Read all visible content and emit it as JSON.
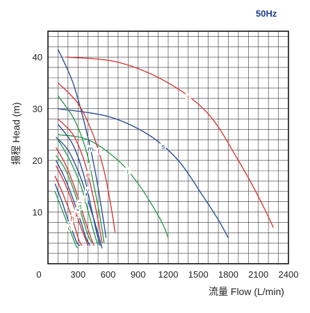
{
  "chart_data": {
    "type": "line",
    "title": "",
    "frequency_label": "50Hz",
    "xlabel": "流量 Flow (L/min)",
    "ylabel": "揚程 Head (m)",
    "xlim": [
      0,
      2400
    ],
    "ylim": [
      0,
      45
    ],
    "x_ticks": [
      0,
      300,
      600,
      900,
      1200,
      1500,
      1800,
      2100,
      2400
    ],
    "y_ticks": [
      10,
      20,
      30,
      40
    ],
    "grid": true,
    "legend": "inline curve letters",
    "colors": {
      "red": "#d43a3a",
      "green": "#2e9b4e",
      "blue": "#2a4f9a",
      "frame": "#111111",
      "title": "#1f3d8f"
    },
    "series": [
      {
        "name": "t",
        "color": "red",
        "x": [
          180,
          700,
          1200,
          1600,
          1900,
          2100,
          2250
        ],
        "y": [
          40,
          39,
          35,
          29,
          20,
          13,
          7
        ]
      },
      {
        "name": "s",
        "color": "blue",
        "x": [
          100,
          600,
          1000,
          1300,
          1550,
          1700,
          1800
        ],
        "y": [
          30,
          28.5,
          25,
          20,
          13,
          8.5,
          5
        ]
      },
      {
        "name": "r",
        "color": "green",
        "x": [
          100,
          400,
          700,
          900,
          1050,
          1150,
          1200
        ],
        "y": [
          25,
          24,
          20,
          15.5,
          11,
          7.5,
          5
        ]
      },
      {
        "name": "m",
        "color": "blue",
        "x": [
          100,
          250,
          380,
          470,
          540,
          580
        ],
        "y": [
          41.5,
          35,
          26,
          18,
          10,
          5
        ]
      },
      {
        "name": "f",
        "color": "red",
        "x": [
          100,
          300,
          450,
          560,
          630,
          670
        ],
        "y": [
          35,
          31,
          25,
          18,
          11,
          6
        ]
      },
      {
        "name": "l",
        "color": "green",
        "x": [
          100,
          260,
          380,
          460,
          520,
          560
        ],
        "y": [
          32.5,
          28,
          22,
          15,
          9,
          4
        ]
      },
      {
        "name": "e",
        "color": "red",
        "x": [
          100,
          250,
          360,
          440,
          500,
          540
        ],
        "y": [
          28,
          25,
          20,
          14,
          8.5,
          4
        ]
      },
      {
        "name": "y",
        "color": "blue",
        "x": [
          100,
          250,
          360,
          430,
          480,
          520
        ],
        "y": [
          27,
          23,
          17,
          11,
          6.5,
          3.5
        ]
      },
      {
        "name": "j",
        "color": "green",
        "x": [
          100,
          220,
          330,
          410,
          460,
          500
        ],
        "y": [
          24,
          20,
          15,
          9.5,
          6,
          3.5
        ]
      },
      {
        "name": "n",
        "color": "red",
        "x": [
          80,
          180,
          280,
          360,
          420,
          460
        ],
        "y": [
          22.5,
          19,
          14,
          9,
          5.5,
          3.5
        ]
      },
      {
        "name": "d",
        "color": "green",
        "x": [
          80,
          180,
          280,
          350,
          400,
          440
        ],
        "y": [
          21,
          18,
          13,
          8.5,
          5.5,
          4
        ]
      },
      {
        "name": "z",
        "color": "blue",
        "x": [
          80,
          170,
          260,
          330,
          380,
          420
        ],
        "y": [
          20,
          16.5,
          12,
          8,
          5,
          3.5
        ]
      },
      {
        "name": "k",
        "color": "red",
        "x": [
          80,
          170,
          260,
          320,
          370,
          400
        ],
        "y": [
          19,
          15.5,
          11,
          7.5,
          5,
          3.5
        ]
      },
      {
        "name": "h",
        "color": "red",
        "x": [
          70,
          150,
          220,
          270,
          310,
          340
        ],
        "y": [
          17,
          13.5,
          10,
          7,
          4.5,
          3.5
        ]
      },
      {
        "name": "b",
        "color": "blue",
        "x": [
          70,
          140,
          200,
          250,
          290,
          320
        ],
        "y": [
          15.5,
          12,
          8.5,
          6,
          4,
          3.5
        ]
      },
      {
        "name": "c",
        "color": "green",
        "x": [
          70,
          130,
          190,
          240,
          280,
          300
        ],
        "y": [
          14,
          11,
          8,
          5.5,
          3.5,
          3
        ]
      },
      {
        "name": "",
        "color": "blue",
        "x": [
          80,
          200,
          320,
          420,
          490,
          540
        ],
        "y": [
          24.5,
          22,
          17,
          11,
          6.5,
          3
        ]
      }
    ]
  }
}
